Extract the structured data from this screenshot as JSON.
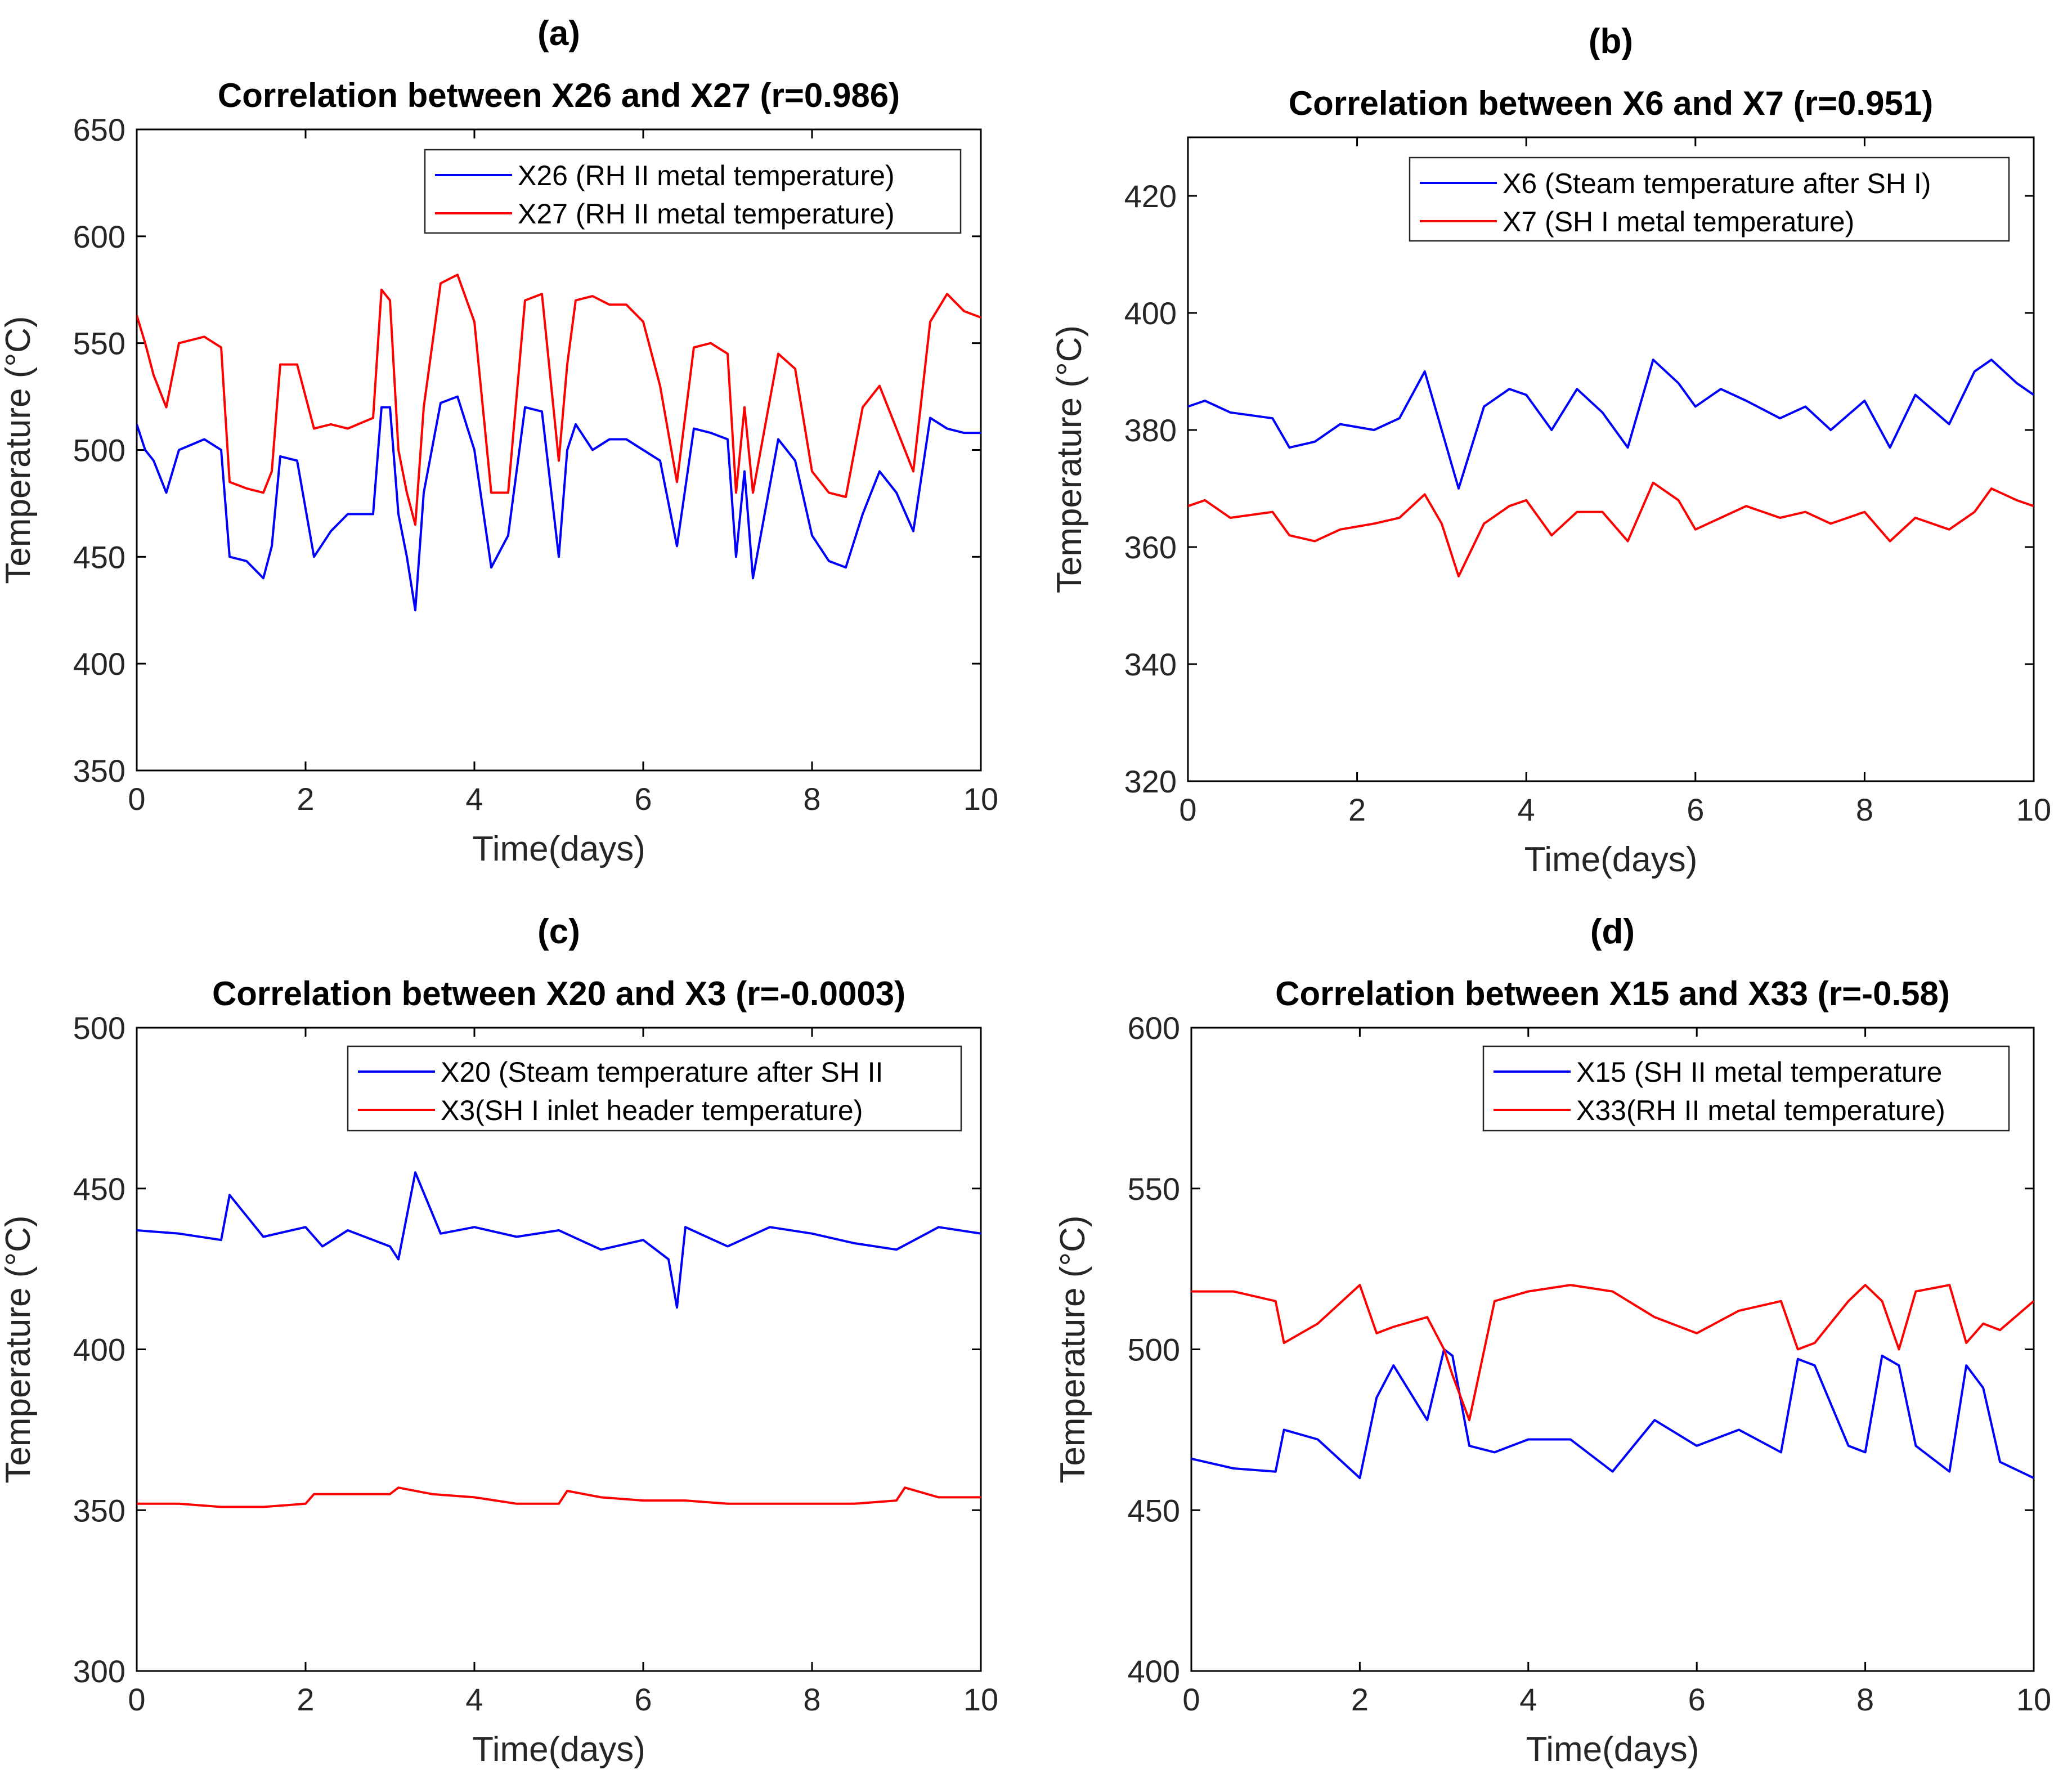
{
  "colors": {
    "series1": "#0000ff",
    "series2": "#ff0000",
    "axis": "#262626",
    "frame": "#000000"
  },
  "chart_data": [
    {
      "panel_label": "(a)",
      "type": "line",
      "title": "Correlation between X26 and X27 (r=0.986)",
      "xlabel": "Time(days)",
      "ylabel": "Temperature (°C)",
      "xlim": [
        0,
        10
      ],
      "ylim": [
        350,
        650
      ],
      "xticks": [
        0,
        2,
        4,
        6,
        8,
        10
      ],
      "yticks": [
        350,
        400,
        450,
        500,
        550,
        600,
        650
      ],
      "legend_position": "top-right",
      "series": [
        {
          "name": "X26 (RH II metal temperature)",
          "color": "#0000ff",
          "x": [
            0,
            0.1,
            0.2,
            0.35,
            0.5,
            0.8,
            1.0,
            1.1,
            1.3,
            1.5,
            1.6,
            1.7,
            1.9,
            2.1,
            2.3,
            2.5,
            2.8,
            2.9,
            3.0,
            3.1,
            3.2,
            3.3,
            3.4,
            3.6,
            3.8,
            4.0,
            4.2,
            4.4,
            4.6,
            4.8,
            5.0,
            5.1,
            5.2,
            5.4,
            5.6,
            5.8,
            6.0,
            6.2,
            6.4,
            6.6,
            6.8,
            7.0,
            7.1,
            7.2,
            7.3,
            7.6,
            7.8,
            8.0,
            8.2,
            8.4,
            8.6,
            8.8,
            9.0,
            9.2,
            9.4,
            9.6,
            9.8,
            10.0
          ],
          "y": [
            512,
            500,
            495,
            480,
            500,
            505,
            500,
            450,
            448,
            440,
            455,
            497,
            495,
            450,
            462,
            470,
            470,
            520,
            520,
            470,
            450,
            425,
            480,
            522,
            525,
            500,
            445,
            460,
            520,
            518,
            450,
            500,
            512,
            500,
            505,
            505,
            500,
            495,
            455,
            510,
            508,
            505,
            450,
            490,
            440,
            505,
            495,
            460,
            448,
            445,
            470,
            490,
            480,
            462,
            515,
            510,
            508,
            508
          ]
        },
        {
          "name": "X27 (RH II metal temperature)",
          "color": "#ff0000",
          "x": [
            0,
            0.1,
            0.2,
            0.35,
            0.5,
            0.8,
            1.0,
            1.1,
            1.3,
            1.5,
            1.6,
            1.7,
            1.9,
            2.1,
            2.3,
            2.5,
            2.8,
            2.9,
            3.0,
            3.1,
            3.2,
            3.3,
            3.4,
            3.6,
            3.8,
            4.0,
            4.2,
            4.4,
            4.6,
            4.8,
            5.0,
            5.1,
            5.2,
            5.4,
            5.6,
            5.8,
            6.0,
            6.2,
            6.4,
            6.6,
            6.8,
            7.0,
            7.1,
            7.2,
            7.3,
            7.6,
            7.8,
            8.0,
            8.2,
            8.4,
            8.6,
            8.8,
            9.0,
            9.2,
            9.4,
            9.6,
            9.8,
            10.0
          ],
          "y": [
            563,
            550,
            535,
            520,
            550,
            553,
            548,
            485,
            482,
            480,
            490,
            540,
            540,
            510,
            512,
            510,
            515,
            575,
            570,
            500,
            480,
            465,
            520,
            578,
            582,
            560,
            480,
            480,
            570,
            573,
            495,
            540,
            570,
            572,
            568,
            568,
            560,
            530,
            485,
            548,
            550,
            545,
            480,
            520,
            480,
            545,
            538,
            490,
            480,
            478,
            520,
            530,
            510,
            490,
            560,
            573,
            565,
            562
          ]
        }
      ]
    },
    {
      "panel_label": "(b)",
      "type": "line",
      "title": "Correlation between X6 and X7 (r=0.951)",
      "xlabel": "Time(days)",
      "ylabel": "Temperature (°C)",
      "xlim": [
        0,
        10
      ],
      "ylim": [
        320,
        430
      ],
      "xticks": [
        0,
        2,
        4,
        6,
        8,
        10
      ],
      "yticks": [
        320,
        340,
        360,
        380,
        400,
        420
      ],
      "legend_position": "top-right",
      "series": [
        {
          "name": "X6 (Steam temperature after SH I)",
          "color": "#0000ff",
          "x": [
            0,
            0.2,
            0.5,
            1.0,
            1.2,
            1.5,
            1.8,
            2.2,
            2.5,
            2.8,
            3.0,
            3.2,
            3.5,
            3.8,
            4.0,
            4.3,
            4.6,
            4.9,
            5.2,
            5.5,
            5.8,
            6.0,
            6.3,
            6.6,
            7.0,
            7.3,
            7.6,
            8.0,
            8.3,
            8.6,
            9.0,
            9.3,
            9.5,
            9.8,
            10.0
          ],
          "y": [
            384,
            385,
            383,
            382,
            377,
            378,
            381,
            380,
            382,
            390,
            380,
            370,
            384,
            387,
            386,
            380,
            387,
            383,
            377,
            392,
            388,
            384,
            387,
            385,
            382,
            384,
            380,
            385,
            377,
            386,
            381,
            390,
            392,
            388,
            386
          ]
        },
        {
          "name": "X7 (SH I metal temperature)",
          "color": "#ff0000",
          "x": [
            0,
            0.2,
            0.5,
            1.0,
            1.2,
            1.5,
            1.8,
            2.2,
            2.5,
            2.8,
            3.0,
            3.2,
            3.5,
            3.8,
            4.0,
            4.3,
            4.6,
            4.9,
            5.2,
            5.5,
            5.8,
            6.0,
            6.3,
            6.6,
            7.0,
            7.3,
            7.6,
            8.0,
            8.3,
            8.6,
            9.0,
            9.3,
            9.5,
            9.8,
            10.0
          ],
          "y": [
            367,
            368,
            365,
            366,
            362,
            361,
            363,
            364,
            365,
            369,
            364,
            355,
            364,
            367,
            368,
            362,
            366,
            366,
            361,
            371,
            368,
            363,
            365,
            367,
            365,
            366,
            364,
            366,
            361,
            365,
            363,
            366,
            370,
            368,
            367
          ]
        }
      ]
    },
    {
      "panel_label": "(c)",
      "type": "line",
      "title": "Correlation between X20 and X3 (r=-0.0003)",
      "xlabel": "Time(days)",
      "ylabel": "Temperature (°C)",
      "xlim": [
        0,
        10
      ],
      "ylim": [
        300,
        500
      ],
      "xticks": [
        0,
        2,
        4,
        6,
        8,
        10
      ],
      "yticks": [
        300,
        350,
        400,
        450,
        500
      ],
      "legend_position": "top-right",
      "series": [
        {
          "name": "X20 (Steam temperature after SH II",
          "color": "#0000ff",
          "x": [
            0,
            0.5,
            1.0,
            1.1,
            1.5,
            2.0,
            2.2,
            2.5,
            3.0,
            3.1,
            3.3,
            3.6,
            4.0,
            4.5,
            5.0,
            5.5,
            6.0,
            6.3,
            6.4,
            6.5,
            7.0,
            7.5,
            8.0,
            8.5,
            9.0,
            9.5,
            10.0
          ],
          "y": [
            437,
            436,
            434,
            448,
            435,
            438,
            432,
            437,
            432,
            428,
            455,
            436,
            438,
            435,
            437,
            431,
            434,
            428,
            413,
            438,
            432,
            438,
            436,
            433,
            431,
            438,
            436
          ]
        },
        {
          "name": "X3(SH I inlet header temperature)",
          "color": "#ff0000",
          "x": [
            0,
            0.5,
            1.0,
            1.5,
            2.0,
            2.1,
            2.5,
            3.0,
            3.1,
            3.5,
            4.0,
            4.5,
            5.0,
            5.1,
            5.5,
            6.0,
            6.5,
            7.0,
            7.5,
            8.0,
            8.5,
            9.0,
            9.1,
            9.5,
            10.0
          ],
          "y": [
            352,
            352,
            351,
            351,
            352,
            355,
            355,
            355,
            357,
            355,
            354,
            352,
            352,
            356,
            354,
            353,
            353,
            352,
            352,
            352,
            352,
            353,
            357,
            354,
            354
          ]
        }
      ]
    },
    {
      "panel_label": "(d)",
      "type": "line",
      "title": "Correlation between X15 and X33 (r=-0.58)",
      "xlabel": "Time(days)",
      "ylabel": "Temperature (°C)",
      "xlim": [
        0,
        10
      ],
      "ylim": [
        400,
        600
      ],
      "xticks": [
        0,
        2,
        4,
        6,
        8,
        10
      ],
      "yticks": [
        400,
        450,
        500,
        550,
        600
      ],
      "legend_position": "top-right",
      "series": [
        {
          "name": "X15 (SH II metal temperature",
          "color": "#0000ff",
          "x": [
            0,
            0.5,
            1.0,
            1.1,
            1.5,
            2.0,
            2.2,
            2.4,
            2.8,
            3.0,
            3.1,
            3.3,
            3.6,
            4.0,
            4.5,
            5.0,
            5.5,
            6.0,
            6.5,
            7.0,
            7.2,
            7.4,
            7.8,
            8.0,
            8.2,
            8.4,
            8.6,
            9.0,
            9.2,
            9.4,
            9.6,
            10.0
          ],
          "y": [
            466,
            463,
            462,
            475,
            472,
            460,
            485,
            495,
            478,
            500,
            498,
            470,
            468,
            472,
            472,
            462,
            478,
            470,
            475,
            468,
            497,
            495,
            470,
            468,
            498,
            495,
            470,
            462,
            495,
            488,
            465,
            460
          ]
        },
        {
          "name": "X33(RH II metal temperature)",
          "color": "#ff0000",
          "x": [
            0,
            0.5,
            1.0,
            1.1,
            1.5,
            2.0,
            2.2,
            2.4,
            2.8,
            3.0,
            3.1,
            3.3,
            3.6,
            4.0,
            4.5,
            5.0,
            5.5,
            6.0,
            6.5,
            7.0,
            7.2,
            7.4,
            7.8,
            8.0,
            8.2,
            8.4,
            8.6,
            9.0,
            9.2,
            9.4,
            9.6,
            10.0
          ],
          "y": [
            518,
            518,
            515,
            502,
            508,
            520,
            505,
            507,
            510,
            500,
            492,
            478,
            515,
            518,
            520,
            518,
            510,
            505,
            512,
            515,
            500,
            502,
            515,
            520,
            515,
            500,
            518,
            520,
            502,
            508,
            506,
            515
          ]
        }
      ]
    }
  ]
}
